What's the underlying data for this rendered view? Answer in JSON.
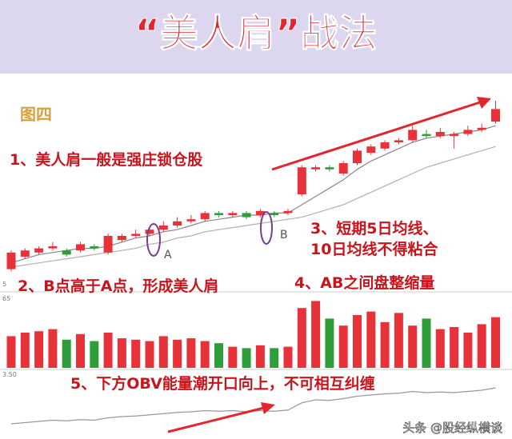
{
  "title": "“美人肩”战法",
  "figure_label": "图四",
  "annotations": [
    "1、美人肩一般是强庄锁仓股",
    "2、B点高于A点，形成美人肩",
    "3、短期5日均线、",
    "10日均线不得粘合",
    "4、AB之间盘整缩量",
    "5、下方OBV能量潮开口向上，不可相互纠缠"
  ],
  "point_labels": [
    "A",
    "B"
  ],
  "axis_notes": [
    "5",
    "65",
    "3.50"
  ],
  "watermark": "头条 @股经纵横谈",
  "chart_data": {
    "type": "candlestick",
    "up_color": "#e8323a",
    "down_color": "#2e9e3a",
    "ylim": [
      0,
      100
    ],
    "open": [
      9,
      15,
      17,
      19,
      18,
      18,
      20,
      17,
      23,
      25,
      26,
      28,
      30,
      32,
      33,
      36,
      35,
      36,
      35,
      36,
      36,
      45,
      57,
      58,
      55,
      60,
      65,
      67,
      70,
      71,
      74,
      73,
      73,
      74,
      76,
      80
    ],
    "close": [
      17,
      18,
      19,
      20,
      16,
      21,
      19,
      25,
      25,
      26,
      28,
      30,
      32,
      33,
      36,
      35,
      36,
      34,
      37,
      35,
      37,
      58,
      58,
      57,
      60,
      66,
      68,
      70,
      71,
      76,
      73,
      75,
      74,
      76,
      77,
      86
    ],
    "high": [
      18,
      19,
      20,
      22,
      19,
      22,
      21,
      26,
      26,
      28,
      29,
      32,
      34,
      35,
      37,
      37,
      37,
      37,
      38,
      37,
      38,
      59,
      59,
      59,
      61,
      67,
      69,
      71,
      72,
      78,
      76,
      77,
      75,
      78,
      79,
      90
    ],
    "low": [
      8,
      14,
      16,
      18,
      15,
      17,
      18,
      16,
      22,
      24,
      25,
      27,
      29,
      31,
      32,
      34,
      34,
      33,
      34,
      34,
      35,
      44,
      56,
      56,
      54,
      59,
      64,
      66,
      69,
      70,
      72,
      72,
      67,
      73,
      75,
      79
    ],
    "ma_lines": [
      {
        "color": "#888888",
        "values": [
          12,
          14,
          16,
          17,
          18,
          19,
          19,
          20,
          22,
          24,
          25,
          27,
          28,
          30,
          32,
          33,
          34,
          35,
          35,
          36,
          36,
          40,
          44,
          48,
          52,
          57,
          61,
          64,
          67,
          70,
          72,
          73,
          74,
          75,
          76,
          78
        ]
      },
      {
        "color": "#b0b0b0",
        "values": [
          10,
          11,
          12,
          13,
          14,
          15,
          16,
          17,
          18,
          19,
          21,
          22,
          24,
          25,
          27,
          28,
          29,
          30,
          31,
          32,
          33,
          34,
          36,
          38,
          40,
          43,
          46,
          49,
          52,
          55,
          58,
          60,
          62,
          64,
          66,
          68
        ]
      }
    ],
    "volume": [
      45,
      50,
      52,
      55,
      40,
      48,
      38,
      50,
      42,
      40,
      38,
      45,
      40,
      42,
      38,
      35,
      30,
      28,
      32,
      28,
      30,
      85,
      95,
      70,
      60,
      75,
      80,
      65,
      78,
      60,
      70,
      55,
      58,
      50,
      62,
      72
    ],
    "volume_ylim": [
      0,
      100
    ],
    "obv": {
      "color": "#999999",
      "values": [
        20,
        22,
        24,
        26,
        25,
        27,
        26,
        30,
        32,
        33,
        35,
        37,
        39,
        40,
        42,
        41,
        42,
        40,
        42,
        41,
        43,
        55,
        60,
        59,
        62,
        66,
        68,
        70,
        71,
        74,
        72,
        73,
        72,
        74,
        76,
        80
      ]
    },
    "obv_ylim": [
      0,
      100
    ]
  }
}
